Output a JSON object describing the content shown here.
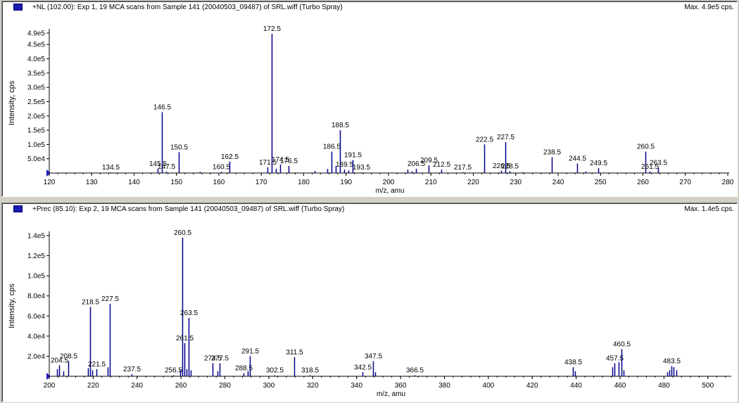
{
  "panes": [
    {
      "title": "+NL (102.00): Exp 1, 19 MCA scans from Sample 141 (20040503_09487) of SRL.wiff (Turbo Spray)",
      "max_label": "Max. 4.9e5 cps."
    },
    {
      "title": "+Prec (85.10): Exp 2, 19 MCA scans from Sample 141 (20040503_09487) of SRL.wiff (Turbo Spray)",
      "max_label": "Max. 1.4e5 cps."
    }
  ],
  "colors": {
    "peak": "#00008b",
    "axis": "#000000",
    "window": "#d4d0c8"
  },
  "chart_data": [
    {
      "type": "bar",
      "xlabel": "m/z, amu",
      "ylabel": "Intensity, cps",
      "xlim": [
        120,
        280
      ],
      "ylim": [
        0,
        490000
      ],
      "xticks": [
        120,
        130,
        140,
        150,
        160,
        170,
        180,
        190,
        200,
        210,
        220,
        230,
        240,
        250,
        260,
        270,
        280
      ],
      "yticks": [
        {
          "v": 50000,
          "label": "5.0e4"
        },
        {
          "v": 100000,
          "label": "1.0e5"
        },
        {
          "v": 150000,
          "label": "1.5e5"
        },
        {
          "v": 200000,
          "label": "2.0e5"
        },
        {
          "v": 250000,
          "label": "2.5e5"
        },
        {
          "v": 300000,
          "label": "3.0e5"
        },
        {
          "v": 350000,
          "label": "3.5e5"
        },
        {
          "v": 400000,
          "label": "4.0e5"
        },
        {
          "v": 450000,
          "label": "4.5e5"
        },
        {
          "v": 490000,
          "label": "4.9e5"
        }
      ],
      "peaks": [
        {
          "x": 134.5,
          "y": 2000,
          "label": "134.5"
        },
        {
          "x": 145.5,
          "y": 15000,
          "label": "145.5"
        },
        {
          "x": 146.5,
          "y": 213000,
          "label": "146.5"
        },
        {
          "x": 147.5,
          "y": 5000,
          "label": "147.5"
        },
        {
          "x": 150.5,
          "y": 73000,
          "label": "150.5"
        },
        {
          "x": 160.5,
          "y": 4000,
          "label": "160.5"
        },
        {
          "x": 162.5,
          "y": 40000,
          "label": "162.5"
        },
        {
          "x": 171.5,
          "y": 20000,
          "label": "171.5"
        },
        {
          "x": 172.5,
          "y": 487000,
          "label": "172.5"
        },
        {
          "x": 174.5,
          "y": 30000,
          "label": "174.5"
        },
        {
          "x": 176.5,
          "y": 25000,
          "label": "176.5"
        },
        {
          "x": 186.5,
          "y": 75000,
          "label": "186.5"
        },
        {
          "x": 188.5,
          "y": 150000,
          "label": "188.5"
        },
        {
          "x": 189.5,
          "y": 12000,
          "label": "189.5"
        },
        {
          "x": 191.5,
          "y": 45000,
          "label": "191.5"
        },
        {
          "x": 193.5,
          "y": 2000,
          "label": "193.5"
        },
        {
          "x": 206.5,
          "y": 15000,
          "label": "206.5"
        },
        {
          "x": 209.5,
          "y": 27000,
          "label": "209.5"
        },
        {
          "x": 212.5,
          "y": 12000,
          "label": "212.5"
        },
        {
          "x": 217.5,
          "y": 3000,
          "label": "217.5"
        },
        {
          "x": 222.5,
          "y": 100000,
          "label": "222.5"
        },
        {
          "x": 226.5,
          "y": 8000,
          "label": "226.5"
        },
        {
          "x": 227.5,
          "y": 108000,
          "label": "227.5"
        },
        {
          "x": 228.5,
          "y": 6000,
          "label": "228.5"
        },
        {
          "x": 238.5,
          "y": 55000,
          "label": "238.5"
        },
        {
          "x": 244.5,
          "y": 33000,
          "label": "244.5"
        },
        {
          "x": 249.5,
          "y": 17000,
          "label": "249.5"
        },
        {
          "x": 260.5,
          "y": 75000,
          "label": "260.5"
        },
        {
          "x": 261.5,
          "y": 5000,
          "label": "261.5"
        },
        {
          "x": 263.5,
          "y": 18000,
          "label": "263.5"
        },
        {
          "x": 155.5,
          "y": 4000,
          "label": ""
        },
        {
          "x": 173.5,
          "y": 15000,
          "label": ""
        },
        {
          "x": 182.5,
          "y": 7000,
          "label": ""
        },
        {
          "x": 185.5,
          "y": 14000,
          "label": ""
        },
        {
          "x": 187.5,
          "y": 25000,
          "label": ""
        },
        {
          "x": 190.5,
          "y": 9000,
          "label": ""
        },
        {
          "x": 204.5,
          "y": 12000,
          "label": ""
        },
        {
          "x": 205.5,
          "y": 6000,
          "label": ""
        },
        {
          "x": 231.5,
          "y": 3000,
          "label": ""
        },
        {
          "x": 246.5,
          "y": 5000,
          "label": ""
        }
      ]
    },
    {
      "type": "bar",
      "xlabel": "m/z, amu",
      "ylabel": "Intensity, cps",
      "xlim": [
        200,
        510
      ],
      "ylim": [
        0,
        140000
      ],
      "xticks": [
        200,
        220,
        240,
        260,
        280,
        300,
        320,
        340,
        360,
        380,
        400,
        420,
        440,
        460,
        480,
        500
      ],
      "yticks": [
        {
          "v": 20000,
          "label": "2.0e4"
        },
        {
          "v": 40000,
          "label": "4.0e4"
        },
        {
          "v": 60000,
          "label": "6.0e4"
        },
        {
          "v": 80000,
          "label": "8.0e4"
        },
        {
          "v": 100000,
          "label": "1.0e5"
        },
        {
          "v": 120000,
          "label": "1.2e5"
        },
        {
          "v": 140000,
          "label": "1.4e5"
        }
      ],
      "peaks": [
        {
          "x": 204.5,
          "y": 11000,
          "label": "204.5"
        },
        {
          "x": 208.5,
          "y": 15000,
          "label": "208.5"
        },
        {
          "x": 218.5,
          "y": 69000,
          "label": "218.5"
        },
        {
          "x": 221.5,
          "y": 7000,
          "label": "221.5"
        },
        {
          "x": 227.5,
          "y": 72000,
          "label": "227.5"
        },
        {
          "x": 237.5,
          "y": 2000,
          "label": "237.5"
        },
        {
          "x": 256.5,
          "y": 1000,
          "label": "256.5"
        },
        {
          "x": 260.5,
          "y": 138000,
          "label": "260.5"
        },
        {
          "x": 261.5,
          "y": 33000,
          "label": "261.5"
        },
        {
          "x": 263.5,
          "y": 58000,
          "label": "263.5"
        },
        {
          "x": 274.5,
          "y": 13000,
          "label": "274.5"
        },
        {
          "x": 277.5,
          "y": 13000,
          "label": "277.5"
        },
        {
          "x": 288.5,
          "y": 3000,
          "label": "288.5"
        },
        {
          "x": 291.5,
          "y": 20000,
          "label": "291.5"
        },
        {
          "x": 302.5,
          "y": 1000,
          "label": "302.5"
        },
        {
          "x": 311.5,
          "y": 19000,
          "label": "311.5"
        },
        {
          "x": 318.5,
          "y": 1000,
          "label": "318.5"
        },
        {
          "x": 342.5,
          "y": 4000,
          "label": "342.5"
        },
        {
          "x": 347.5,
          "y": 15000,
          "label": "347.5"
        },
        {
          "x": 366.5,
          "y": 1000,
          "label": "366.5"
        },
        {
          "x": 438.5,
          "y": 9000,
          "label": "438.5"
        },
        {
          "x": 457.5,
          "y": 13000,
          "label": "457.5"
        },
        {
          "x": 460.5,
          "y": 27000,
          "label": "460.5"
        },
        {
          "x": 483.5,
          "y": 10000,
          "label": "483.5"
        },
        {
          "x": 203.5,
          "y": 7000,
          "label": ""
        },
        {
          "x": 206.5,
          "y": 5000,
          "label": ""
        },
        {
          "x": 217.5,
          "y": 8000,
          "label": ""
        },
        {
          "x": 219.5,
          "y": 6000,
          "label": ""
        },
        {
          "x": 226.5,
          "y": 9000,
          "label": ""
        },
        {
          "x": 259.5,
          "y": 6000,
          "label": ""
        },
        {
          "x": 262.5,
          "y": 7000,
          "label": ""
        },
        {
          "x": 264.5,
          "y": 6000,
          "label": ""
        },
        {
          "x": 276.5,
          "y": 5000,
          "label": ""
        },
        {
          "x": 290.5,
          "y": 5000,
          "label": ""
        },
        {
          "x": 348.5,
          "y": 4000,
          "label": ""
        },
        {
          "x": 439.5,
          "y": 5000,
          "label": ""
        },
        {
          "x": 456.5,
          "y": 9000,
          "label": ""
        },
        {
          "x": 459.5,
          "y": 14000,
          "label": ""
        },
        {
          "x": 461.5,
          "y": 6000,
          "label": ""
        },
        {
          "x": 481.5,
          "y": 4000,
          "label": ""
        },
        {
          "x": 482.5,
          "y": 6000,
          "label": ""
        },
        {
          "x": 484.5,
          "y": 9000,
          "label": ""
        },
        {
          "x": 485.5,
          "y": 6000,
          "label": ""
        }
      ]
    }
  ]
}
